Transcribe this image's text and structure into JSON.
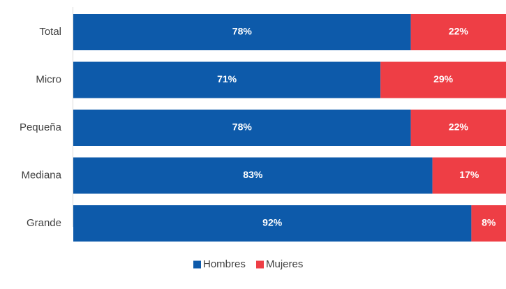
{
  "chart_data": {
    "type": "bar",
    "orientation": "horizontal",
    "stacked": true,
    "percent_stacked": true,
    "categories": [
      "Total",
      "Micro",
      "Pequeña",
      "Mediana",
      "Grande"
    ],
    "series": [
      {
        "name": "Hombres",
        "color": "#0d5aaa",
        "values": [
          78,
          71,
          78,
          83,
          92
        ],
        "labels": [
          "78%",
          "71%",
          "78%",
          "83%",
          "92%"
        ]
      },
      {
        "name": "Mujeres",
        "color": "#ee3e45",
        "values": [
          22,
          29,
          22,
          17,
          8
        ],
        "labels": [
          "22%",
          "29%",
          "22%",
          "17%",
          "8%"
        ]
      }
    ],
    "xlim": [
      0,
      100
    ],
    "grid": false,
    "legend_position": "bottom-center"
  }
}
